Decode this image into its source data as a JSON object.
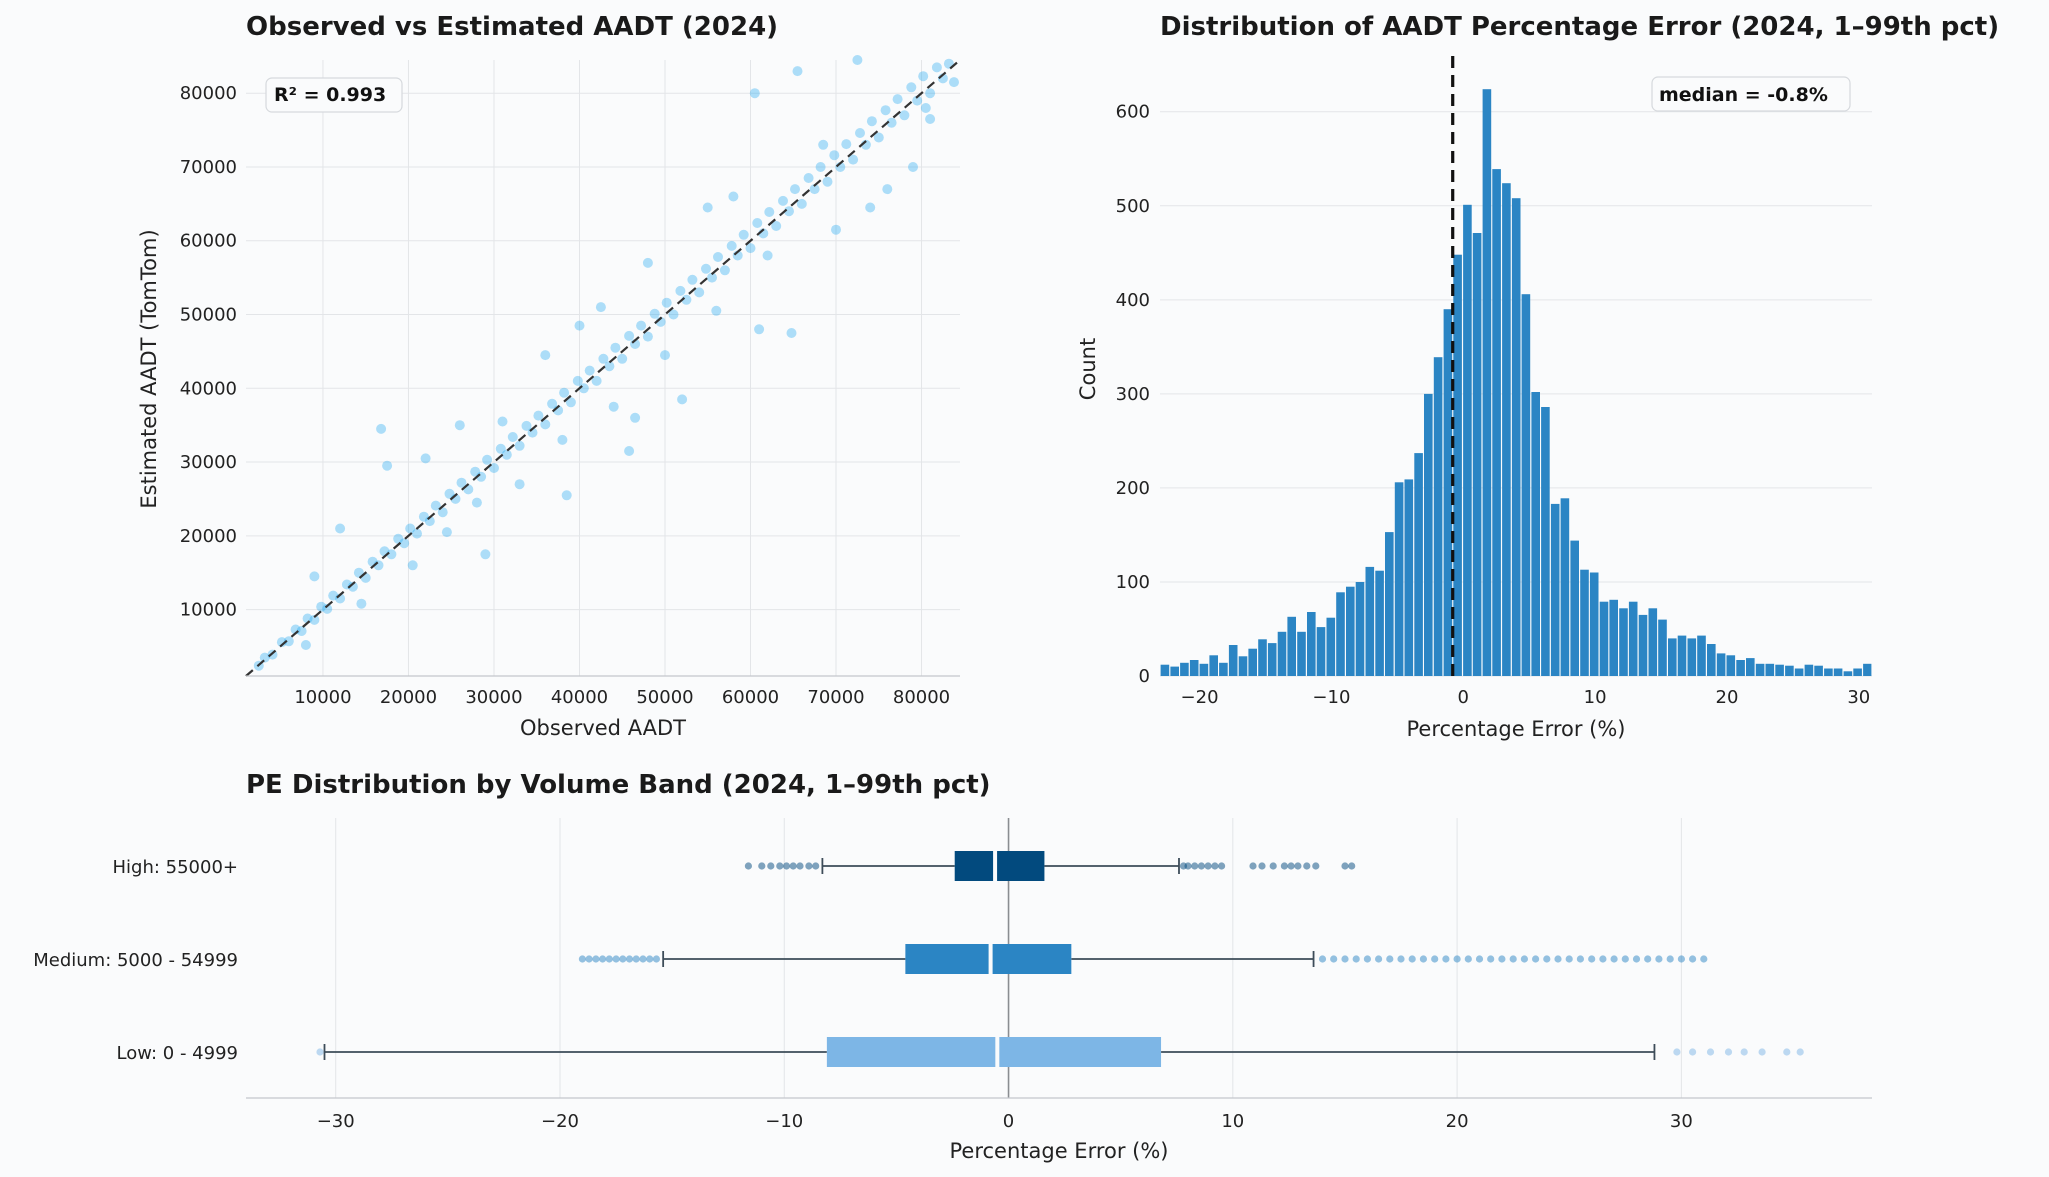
{
  "chart_data": [
    {
      "type": "scatter",
      "title": "Observed vs Estimated AADT (2024)",
      "xlabel": "Observed AADT",
      "ylabel": "Estimated AADT (TomTom)",
      "xlim": [
        1000,
        84500
      ],
      "ylim": [
        1000,
        84500
      ],
      "xticks": [
        10000,
        20000,
        30000,
        40000,
        50000,
        60000,
        70000,
        80000
      ],
      "yticks": [
        10000,
        20000,
        30000,
        40000,
        50000,
        60000,
        70000,
        80000
      ],
      "xtick_labels": [
        "10000",
        "20000",
        "30000",
        "40000",
        "50000",
        "60000",
        "70000",
        "80000"
      ],
      "ytick_labels": [
        "10000",
        "20000",
        "30000",
        "40000",
        "50000",
        "60000",
        "70000",
        "80000"
      ],
      "annotation": "R² = 0.993",
      "point_color": "#1aa7f0",
      "reference_line": "y = x",
      "grid": true,
      "points": [
        [
          2500,
          2400
        ],
        [
          3200,
          3500
        ],
        [
          4100,
          3900
        ],
        [
          5200,
          5600
        ],
        [
          6000,
          5700
        ],
        [
          6800,
          7300
        ],
        [
          7500,
          7100
        ],
        [
          8200,
          8800
        ],
        [
          9000,
          8600
        ],
        [
          9800,
          10400
        ],
        [
          10500,
          10100
        ],
        [
          11200,
          11900
        ],
        [
          12000,
          11500
        ],
        [
          12800,
          13400
        ],
        [
          13500,
          13100
        ],
        [
          14200,
          15000
        ],
        [
          15000,
          14300
        ],
        [
          15800,
          16500
        ],
        [
          16500,
          16000
        ],
        [
          17200,
          17900
        ],
        [
          18000,
          17500
        ],
        [
          18800,
          19600
        ],
        [
          19500,
          19000
        ],
        [
          20200,
          21000
        ],
        [
          21000,
          20300
        ],
        [
          21800,
          22600
        ],
        [
          22500,
          22000
        ],
        [
          23200,
          24100
        ],
        [
          24000,
          23200
        ],
        [
          24800,
          25700
        ],
        [
          25500,
          25000
        ],
        [
          26200,
          27200
        ],
        [
          27000,
          26300
        ],
        [
          27800,
          28700
        ],
        [
          28500,
          28000
        ],
        [
          29200,
          30300
        ],
        [
          30000,
          29200
        ],
        [
          30800,
          31800
        ],
        [
          31500,
          31000
        ],
        [
          32200,
          33400
        ],
        [
          33000,
          32200
        ],
        [
          33800,
          34900
        ],
        [
          34500,
          34000
        ],
        [
          35200,
          36300
        ],
        [
          36000,
          35100
        ],
        [
          36800,
          37900
        ],
        [
          37500,
          37000
        ],
        [
          38200,
          39400
        ],
        [
          39000,
          38100
        ],
        [
          39800,
          41000
        ],
        [
          40500,
          40000
        ],
        [
          41200,
          42400
        ],
        [
          42000,
          41000
        ],
        [
          42800,
          44000
        ],
        [
          43500,
          43000
        ],
        [
          44200,
          45500
        ],
        [
          45000,
          44000
        ],
        [
          45800,
          47100
        ],
        [
          46500,
          46000
        ],
        [
          47200,
          48500
        ],
        [
          48000,
          47000
        ],
        [
          48800,
          50100
        ],
        [
          49500,
          49000
        ],
        [
          50200,
          51600
        ],
        [
          51000,
          50000
        ],
        [
          51800,
          53200
        ],
        [
          52500,
          52000
        ],
        [
          53200,
          54700
        ],
        [
          54000,
          53000
        ],
        [
          54800,
          56200
        ],
        [
          55500,
          55000
        ],
        [
          56200,
          57800
        ],
        [
          57000,
          56000
        ],
        [
          57800,
          59300
        ],
        [
          58500,
          58000
        ],
        [
          59200,
          60800
        ],
        [
          60000,
          59000
        ],
        [
          60800,
          62400
        ],
        [
          61500,
          61000
        ],
        [
          62200,
          63900
        ],
        [
          63000,
          62000
        ],
        [
          63800,
          65400
        ],
        [
          64500,
          64000
        ],
        [
          65200,
          67000
        ],
        [
          66000,
          65000
        ],
        [
          66800,
          68500
        ],
        [
          67500,
          67000
        ],
        [
          68200,
          70000
        ],
        [
          69000,
          68000
        ],
        [
          69800,
          71600
        ],
        [
          70500,
          70000
        ],
        [
          71200,
          73100
        ],
        [
          72000,
          71000
        ],
        [
          72800,
          74600
        ],
        [
          73500,
          73000
        ],
        [
          74200,
          76200
        ],
        [
          75000,
          74000
        ],
        [
          75800,
          77700
        ],
        [
          76500,
          76000
        ],
        [
          77200,
          79200
        ],
        [
          78000,
          77000
        ],
        [
          78800,
          80800
        ],
        [
          79500,
          79000
        ],
        [
          80200,
          82300
        ],
        [
          81000,
          80000
        ],
        [
          81800,
          83500
        ],
        [
          82500,
          82000
        ],
        [
          83200,
          84000
        ],
        [
          83800,
          81500
        ],
        [
          80500,
          78000
        ],
        [
          16800,
          34500
        ],
        [
          17500,
          29500
        ],
        [
          29000,
          17500
        ],
        [
          31000,
          35500
        ],
        [
          38500,
          25500
        ],
        [
          45800,
          31500
        ],
        [
          46500,
          36000
        ],
        [
          52000,
          38500
        ],
        [
          61000,
          48000
        ],
        [
          64800,
          47500
        ],
        [
          55000,
          64500
        ],
        [
          58000,
          66000
        ],
        [
          60500,
          80000
        ],
        [
          65500,
          83000
        ],
        [
          68500,
          73000
        ],
        [
          72500,
          84500
        ],
        [
          74000,
          64500
        ],
        [
          76000,
          67000
        ],
        [
          79000,
          70000
        ],
        [
          81000,
          76500
        ],
        [
          36000,
          44500
        ],
        [
          40000,
          48500
        ],
        [
          42500,
          51000
        ],
        [
          26000,
          35000
        ],
        [
          22000,
          30500
        ],
        [
          12000,
          21000
        ],
        [
          9000,
          14500
        ],
        [
          48000,
          57000
        ],
        [
          33000,
          27000
        ],
        [
          20500,
          16000
        ],
        [
          44000,
          37500
        ],
        [
          50000,
          44500
        ],
        [
          56000,
          50500
        ],
        [
          62000,
          58000
        ],
        [
          70000,
          61500
        ],
        [
          24500,
          20500
        ],
        [
          14500,
          10800
        ],
        [
          8000,
          5200
        ],
        [
          38000,
          33000
        ],
        [
          28000,
          24500
        ]
      ]
    },
    {
      "type": "bar",
      "title": "Distribution of AADT Percentage Error (2024, 1–99th pct)",
      "xlabel": "Percentage Error (%)",
      "ylabel": "Count",
      "xlim": [
        -23,
        31
      ],
      "ylim": [
        0,
        655
      ],
      "xticks": [
        -20,
        -10,
        0,
        10,
        20,
        30
      ],
      "xtick_labels": [
        "−20",
        "−10",
        "0",
        "10",
        "20",
        "30"
      ],
      "yticks": [
        0,
        100,
        200,
        300,
        400,
        500,
        600
      ],
      "ytick_labels": [
        "0",
        "100",
        "200",
        "300",
        "400",
        "500",
        "600"
      ],
      "bin_start": -23,
      "bin_width": 0.74,
      "values": [
        12,
        10,
        14,
        17,
        13,
        22,
        14,
        33,
        21,
        29,
        39,
        35,
        47,
        63,
        47,
        68,
        52,
        62,
        89,
        95,
        100,
        116,
        112,
        153,
        206,
        209,
        237,
        300,
        339,
        390,
        448,
        501,
        471,
        624,
        539,
        524,
        508,
        406,
        302,
        286,
        183,
        189,
        144,
        113,
        110,
        79,
        81,
        72,
        79,
        65,
        72,
        60,
        40,
        43,
        40,
        43,
        34,
        24,
        22,
        17,
        19,
        13,
        13,
        12,
        11,
        8,
        12,
        11,
        8,
        8,
        5,
        8,
        13,
        10
      ],
      "bar_color": "#2b85c4",
      "median": -0.8,
      "annotation": "median = -0.8%",
      "grid": true
    },
    {
      "type": "box",
      "title": "PE Distribution by Volume Band (2024, 1–99th pct)",
      "xlabel": "Percentage Error (%)",
      "xlim": [
        -34,
        38.5
      ],
      "xticks": [
        -30,
        -20,
        -10,
        0,
        10,
        20,
        30
      ],
      "xtick_labels": [
        "−30",
        "−20",
        "−10",
        "0",
        "10",
        "20",
        "30"
      ],
      "categories": [
        "High: 55000+",
        "Medium: 5000 - 54999",
        "Low: 0 - 4999"
      ],
      "boxes": [
        {
          "name": "High: 55000+",
          "whisker_low": -8.3,
          "q1": -2.4,
          "median": -0.6,
          "q3": 1.6,
          "whisker_high": 7.6,
          "color": "#024a7e",
          "outliers": [
            -11.6,
            -11.0,
            -10.6,
            -10.2,
            -9.9,
            -9.6,
            -9.3,
            -8.9,
            -8.6,
            7.8,
            8.0,
            8.3,
            8.6,
            8.9,
            9.2,
            9.5,
            10.9,
            11.3,
            11.8,
            12.3,
            12.6,
            12.9,
            13.3,
            13.7,
            15.0,
            15.3
          ]
        },
        {
          "name": "Medium: 5000 - 54999",
          "whisker_low": -15.4,
          "q1": -4.6,
          "median": -0.8,
          "q3": 2.8,
          "whisker_high": 13.6,
          "color": "#2b85c4",
          "outliers": [
            -19.0,
            -18.7,
            -18.4,
            -18.1,
            -17.8,
            -17.5,
            -17.2,
            -16.9,
            -16.6,
            -16.3,
            -16.0,
            -15.7,
            14.0,
            14.5,
            15.0,
            15.5,
            16.0,
            16.5,
            17.0,
            17.5,
            18.0,
            18.5,
            19.0,
            19.5,
            20.0,
            20.5,
            21.0,
            21.5,
            22.0,
            22.5,
            23.0,
            23.5,
            24.0,
            24.5,
            25.0,
            25.5,
            26.0,
            26.5,
            27.0,
            27.5,
            28.0,
            28.5,
            29.0,
            29.5,
            30.0,
            30.5,
            31.0
          ]
        },
        {
          "name": "Low: 0 - 4999",
          "whisker_low": -30.5,
          "q1": -8.1,
          "median": -0.5,
          "q3": 6.8,
          "whisker_high": 28.8,
          "color": "#7db6e6",
          "outliers": [
            -30.7,
            29.8,
            30.5,
            31.3,
            32.1,
            32.8,
            33.6,
            34.7,
            35.3
          ]
        }
      ]
    }
  ]
}
